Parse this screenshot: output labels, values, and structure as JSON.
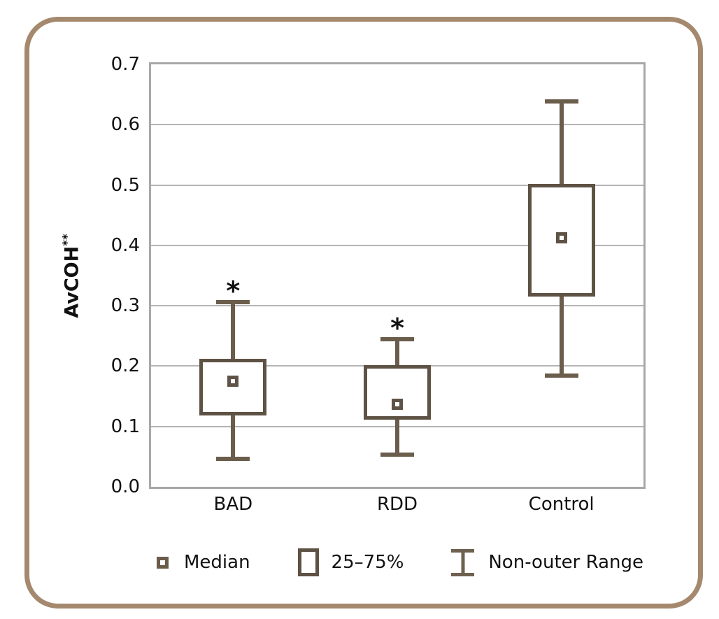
{
  "figure": {
    "outer_border_color": "#a5896e",
    "background_color": "#ffffff"
  },
  "chart_data": {
    "type": "boxplot",
    "title": "",
    "xlabel": "",
    "ylabel": "AvCOH**",
    "ylabel_parts": {
      "base": "AvCOH",
      "sup": "**"
    },
    "categories": [
      "BAD",
      "RDD",
      "Control"
    ],
    "ylim": [
      0.0,
      0.7
    ],
    "ytick_labels": [
      "0.0",
      "0.1",
      "0.2",
      "0.3",
      "0.4",
      "0.5",
      "0.6",
      "0.7"
    ],
    "yticks": [
      0.0,
      0.1,
      0.2,
      0.3,
      0.4,
      0.5,
      0.6,
      0.7
    ],
    "grid": "horizontal",
    "series": [
      {
        "category": "BAD",
        "median": 0.175,
        "q1": 0.12,
        "q3": 0.21,
        "whisker_low": 0.046,
        "whisker_high": 0.306,
        "annotation": "*"
      },
      {
        "category": "RDD",
        "median": 0.137,
        "q1": 0.113,
        "q3": 0.199,
        "whisker_low": 0.053,
        "whisker_high": 0.245,
        "annotation": "*"
      },
      {
        "category": "Control",
        "median": 0.413,
        "q1": 0.318,
        "q3": 0.499,
        "whisker_low": 0.184,
        "whisker_high": 0.639,
        "annotation": ""
      }
    ],
    "legend": [
      {
        "symbol": "median-square-icon",
        "label": "Median"
      },
      {
        "symbol": "box-icon",
        "label": "25–75%"
      },
      {
        "symbol": "whisker-ibeam-icon",
        "label": "Non-outer Range"
      }
    ],
    "legend_position": "bottom",
    "colors": {
      "box_stroke": "#5e5244",
      "whisker_stroke": "#6b5d4c",
      "median_stroke": "#5f5347",
      "grid_line": "#b4b4b4",
      "plot_frame": "#a8a8a8",
      "outer_border": "#a5896e",
      "text": "#111111"
    }
  }
}
